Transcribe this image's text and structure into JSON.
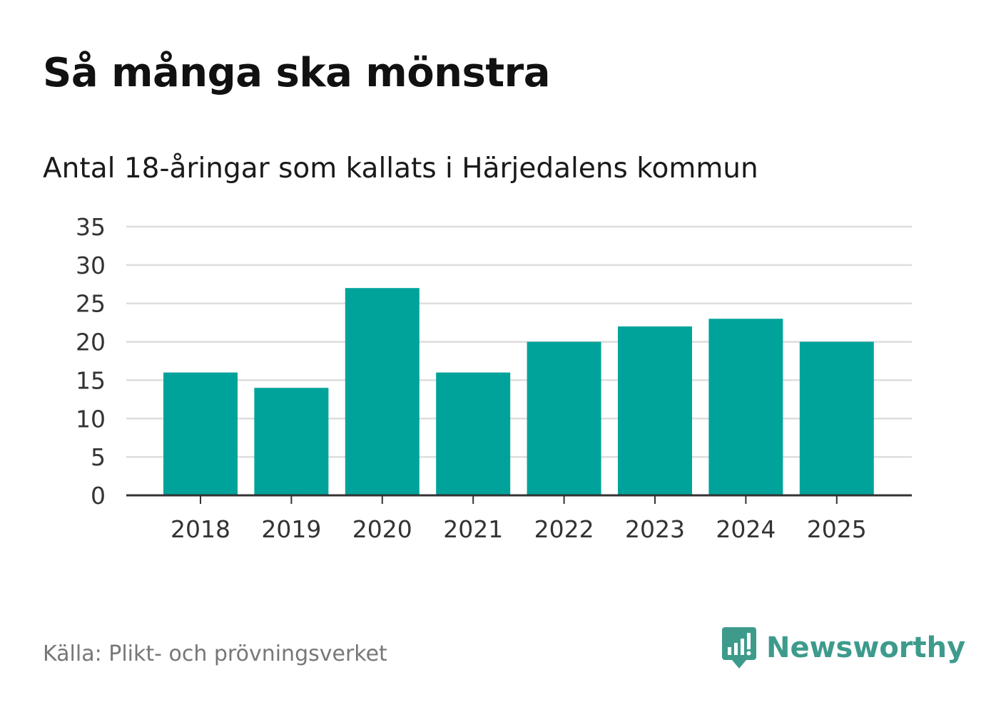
{
  "header": {
    "title": "Så många ska mönstra",
    "subtitle": "Antal 18-åringar som kallats i Härjedalens kommun"
  },
  "footer": {
    "source": "Källa: Plikt- och prövningsverket",
    "brand": "Newsworthy",
    "brand_icon": "newsworthy-logo-icon"
  },
  "colors": {
    "bar": "#00a39a",
    "grid": "#dddddd",
    "axis": "#333333",
    "brand": "#3e9b8c"
  },
  "chart_data": {
    "type": "bar",
    "title": "Så många ska mönstra",
    "subtitle": "Antal 18-åringar som kallats i Härjedalens kommun",
    "categories": [
      "2018",
      "2019",
      "2020",
      "2021",
      "2022",
      "2023",
      "2024",
      "2025"
    ],
    "values": [
      16,
      14,
      27,
      16,
      20,
      22,
      23,
      20
    ],
    "ylim": [
      0,
      35
    ],
    "yticks": [
      0,
      5,
      10,
      15,
      20,
      25,
      30,
      35
    ],
    "xlabel": "",
    "ylabel": "",
    "grid": true,
    "legend": "none"
  }
}
